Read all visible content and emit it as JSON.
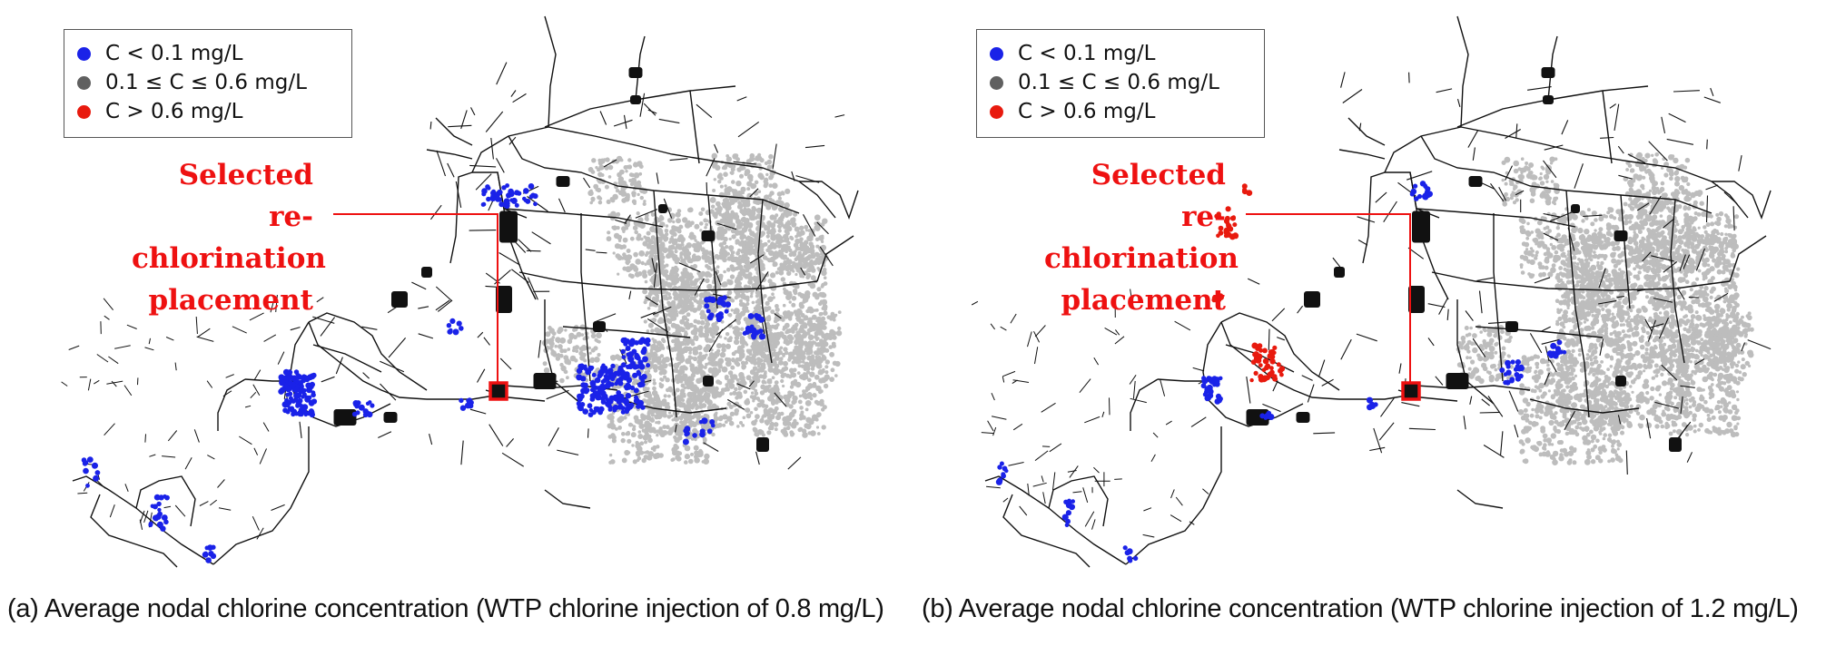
{
  "colors": {
    "low": "#1a22e8",
    "mid": "#606060",
    "high": "#e81a0e",
    "callout": "#ee1111",
    "pipe": "#111111",
    "zone": "#bdbdbd",
    "marker_fill": "#111111",
    "marker_border": "#ee1111"
  },
  "legend": [
    {
      "label": "C < 0.1 mg/L",
      "color": "#1a22e8"
    },
    {
      "label": "0.1 ≤ C ≤ 0.6 mg/L",
      "color": "#606060"
    },
    {
      "label": "C > 0.6 mg/L",
      "color": "#e81a0e"
    }
  ],
  "callout": {
    "line1": "Selected",
    "line2": "re-chlorination",
    "line3": "placement"
  },
  "panels": [
    {
      "caption": "(a) Average nodal chlorine concentration (WTP chlorine injection of 0.8 mg/L)",
      "wtp_injection_mg_per_L": 0.8
    },
    {
      "caption": "(b) Average nodal chlorine concentration (WTP chlorine injection of 1.2 mg/L)",
      "wtp_injection_mg_per_L": 1.2
    }
  ]
}
